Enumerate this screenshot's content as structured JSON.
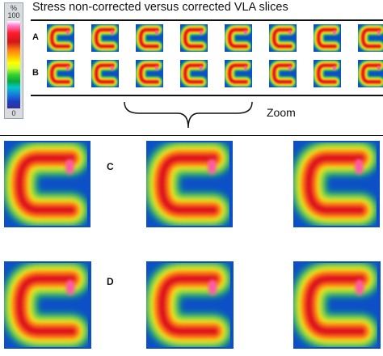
{
  "title": "Stress non-corrected versus corrected VLA slices",
  "scale": {
    "top_label": "%",
    "max_label": "100",
    "min_label": "0"
  },
  "rows": {
    "a": "A",
    "b": "B",
    "c": "C",
    "d": "D"
  },
  "zoom_label": "Zoom",
  "colors": {
    "background": "#0d4fc7",
    "halo": "#1fd44a",
    "ring_outer": "#ffe600",
    "ring_mid": "#ff7a12",
    "ring_core": "#e0161c",
    "hotspot": "#ff5aa8"
  },
  "slices_per_row": 8,
  "zoomed_images_per_row": 3
}
